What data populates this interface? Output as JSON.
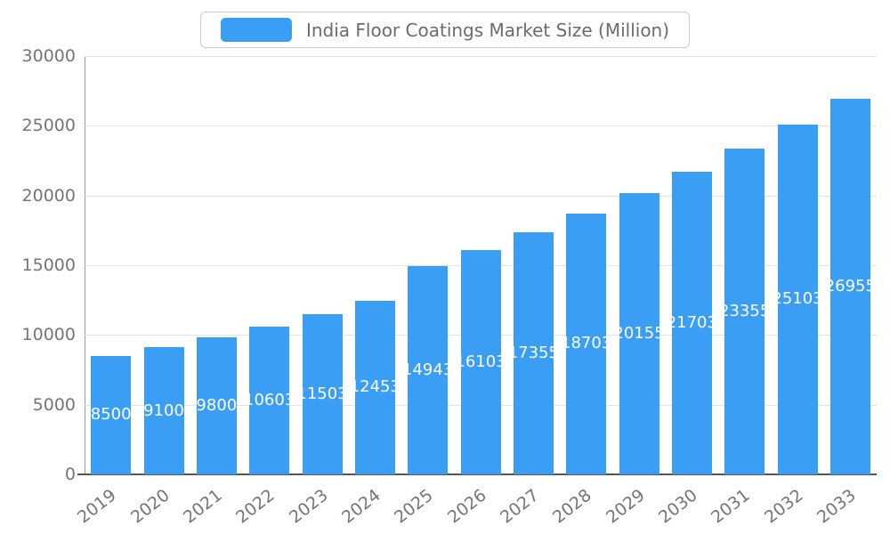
{
  "legend": {
    "label": "India Floor Coatings Market Size (Million)"
  },
  "chart_data": {
    "type": "bar",
    "title": "India Floor Coatings Market Size (Million)",
    "categories": [
      "2019",
      "2020",
      "2021",
      "2022",
      "2023",
      "2024",
      "2025",
      "2026",
      "2027",
      "2028",
      "2029",
      "2030",
      "2031",
      "2032",
      "2033"
    ],
    "values": [
      8500,
      9100,
      9800,
      10603,
      11503,
      12453,
      14943,
      16103,
      17355,
      18703,
      20155,
      21703,
      23355,
      25103,
      26955
    ],
    "xlabel": "",
    "ylabel": "",
    "ylim": [
      0,
      30000
    ],
    "ytick_step": 5000,
    "yticks": [
      0,
      5000,
      10000,
      15000,
      20000,
      25000,
      30000
    ],
    "grid": true,
    "legend_position": "top-center",
    "bar_color": "#3B9EF5",
    "bar_label_color": "#ffffff",
    "axis_text_color": "#757575"
  }
}
